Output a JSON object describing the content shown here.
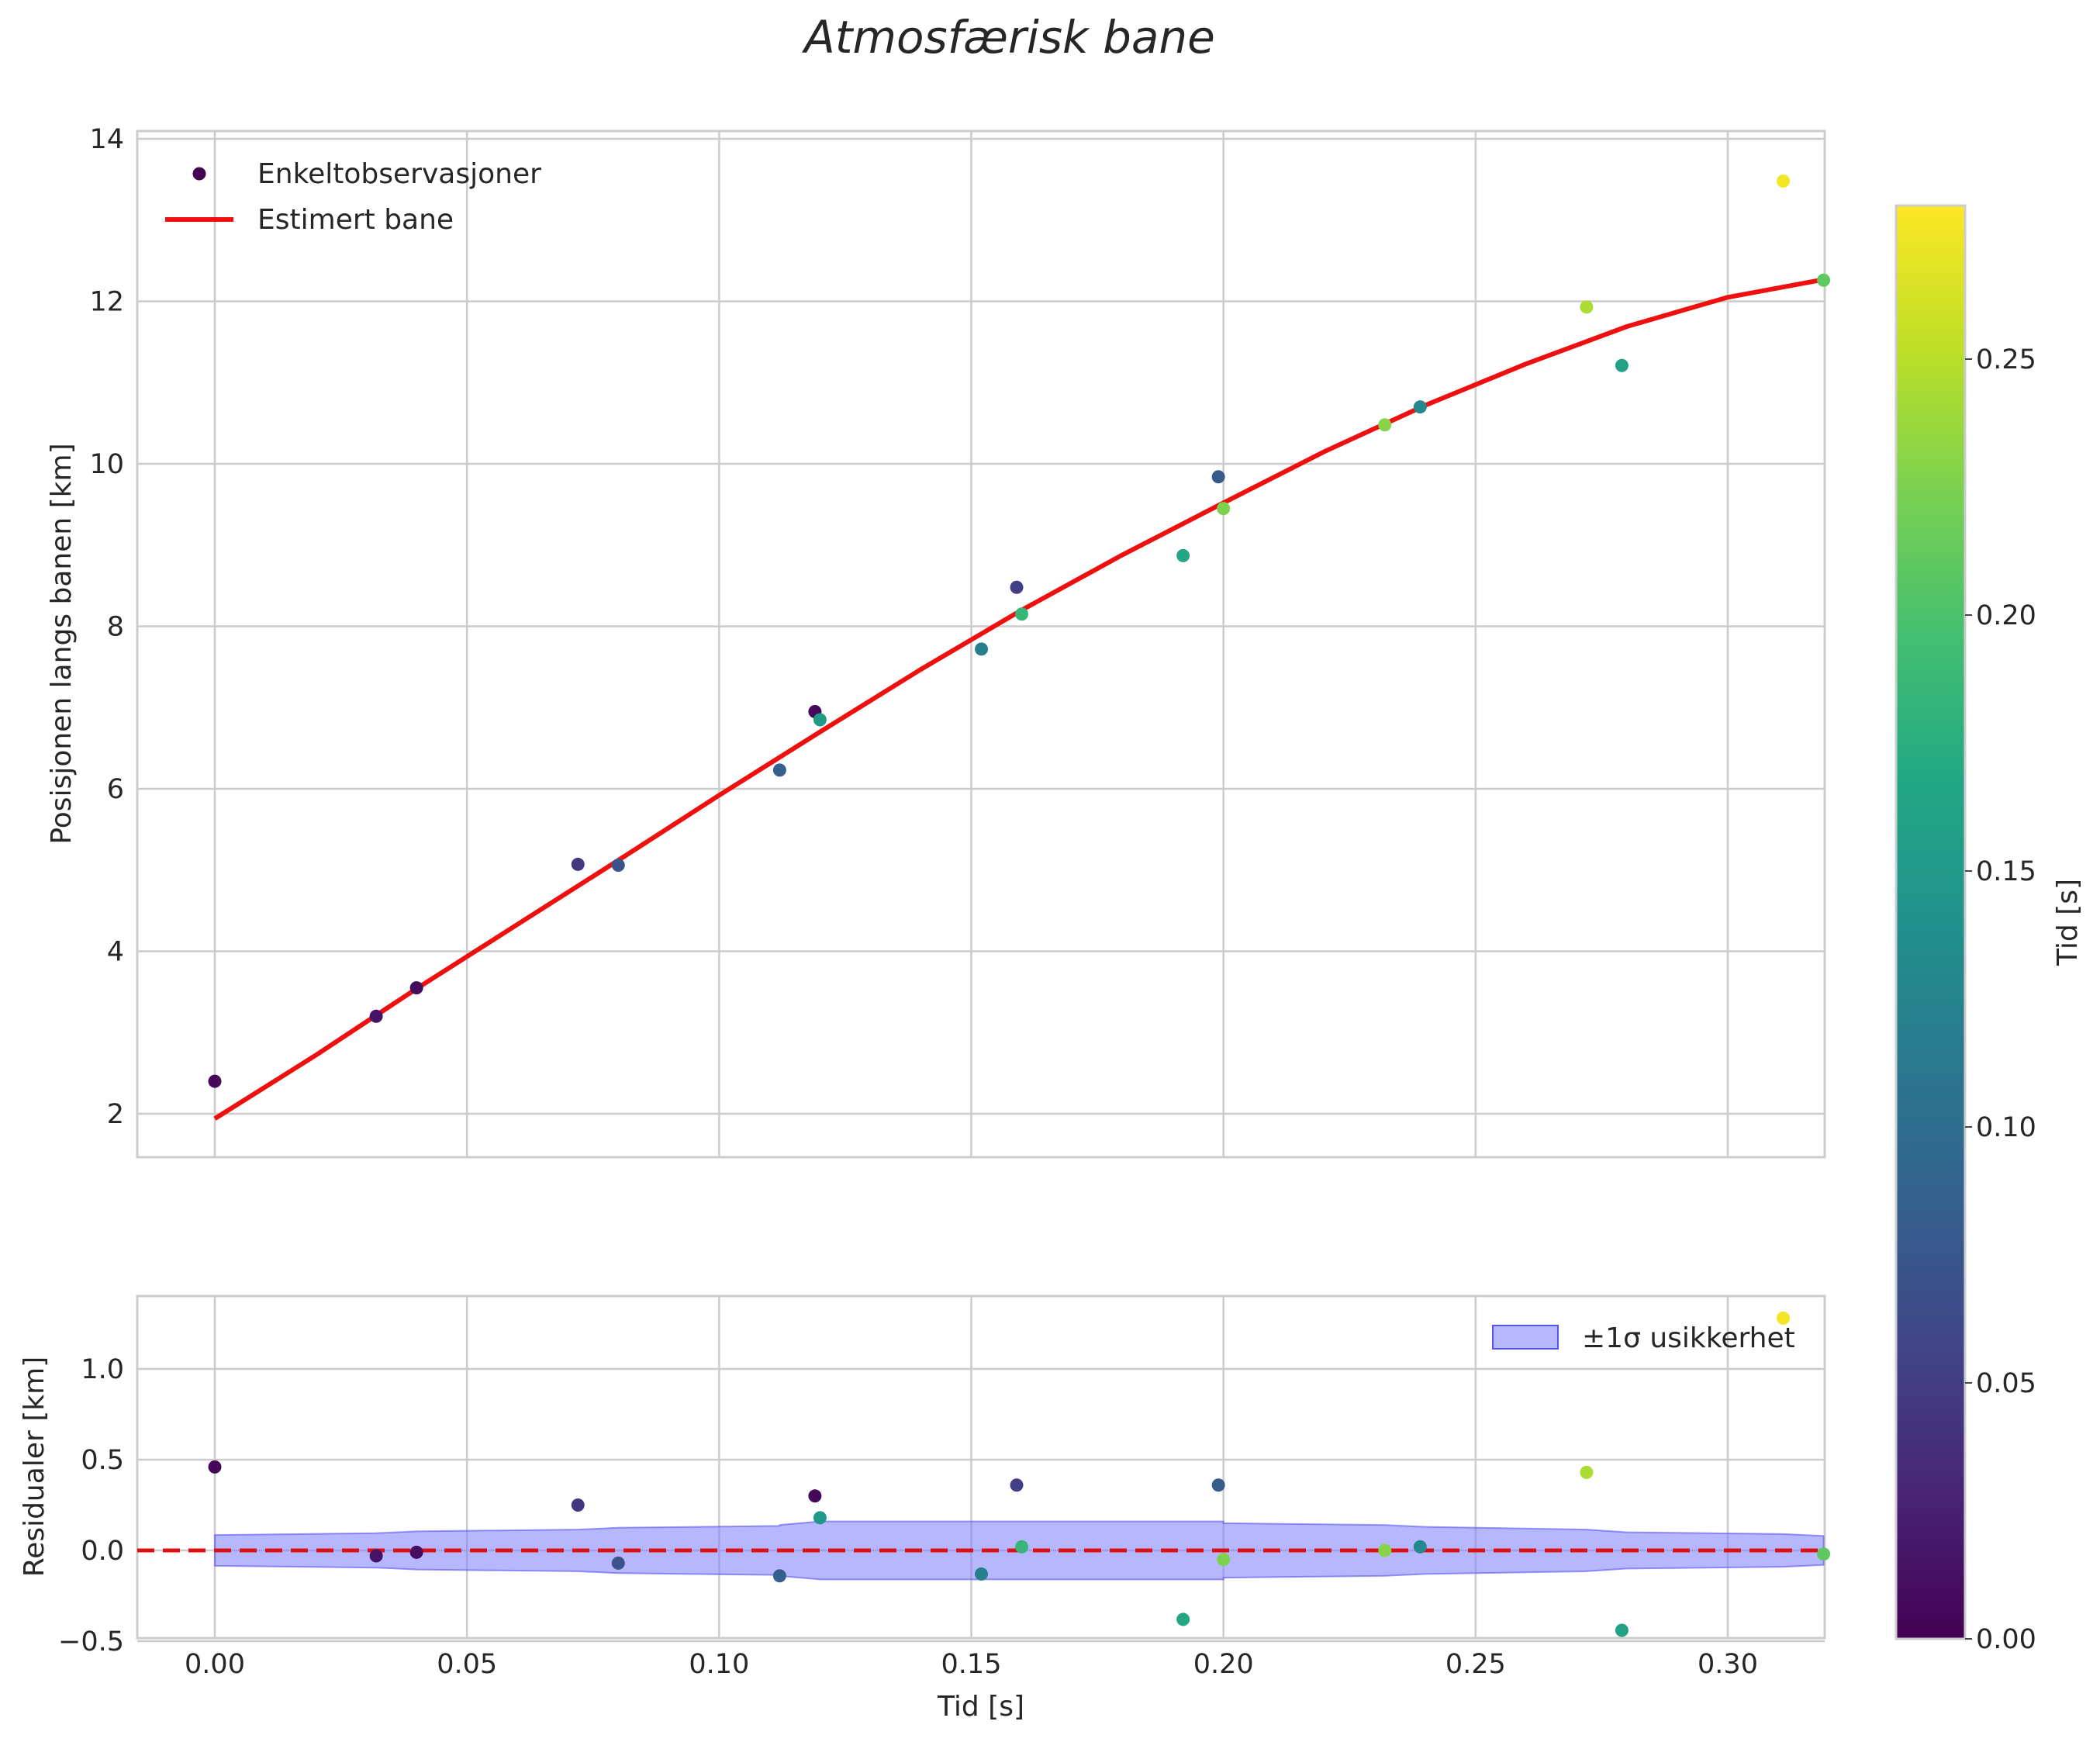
{
  "chart_data": {
    "type": "scatter",
    "title": "Atmosfærisk bane",
    "xlabel": "Tid [s]",
    "colorbar": {
      "label": "Tid [s]",
      "range": [
        0,
        0.28
      ],
      "ticks": [
        "0.00",
        "0.05",
        "0.10",
        "0.15",
        "0.20",
        "0.25"
      ],
      "colormap": "viridis"
    },
    "top_panel": {
      "ylabel": "Posisjonen langs banen [km]",
      "xlim": [
        -0.016,
        0.335
      ],
      "ylim": [
        1.4,
        14.1
      ],
      "xticks": [
        "0.00",
        "0.05",
        "0.10",
        "0.15",
        "0.20",
        "0.25",
        "0.30"
      ],
      "yticks": [
        "2",
        "4",
        "6",
        "8",
        "10",
        "12",
        "14"
      ],
      "legend": {
        "position": "upper-left",
        "scatter_label": "Enkeltobservasjoner",
        "line_label": "Estimert bane"
      },
      "observations": {
        "name": "Enkeltobservasjoner",
        "x": [
          0.0,
          0.032,
          0.04,
          0.072,
          0.08,
          0.112,
          0.119,
          0.12,
          0.152,
          0.159,
          0.16,
          0.192,
          0.199,
          0.2,
          0.232,
          0.239,
          0.272,
          0.279,
          0.311,
          0.319
        ],
        "y": [
          2.4,
          3.2,
          3.55,
          5.07,
          5.06,
          6.23,
          6.95,
          6.85,
          7.72,
          8.48,
          8.15,
          8.87,
          9.84,
          9.45,
          10.48,
          10.7,
          11.93,
          11.21,
          13.48,
          12.26
        ],
        "color_value": [
          0.005,
          0.014,
          0.01,
          0.045,
          0.07,
          0.085,
          0.005,
          0.15,
          0.12,
          0.05,
          0.185,
          0.165,
          0.08,
          0.225,
          0.23,
          0.13,
          0.245,
          0.16,
          0.275,
          0.21
        ]
      },
      "fit_line": {
        "name": "Estimert bane",
        "color": "#ee0f0f",
        "x": [
          0.0,
          0.02,
          0.04,
          0.06,
          0.08,
          0.1,
          0.12,
          0.14,
          0.16,
          0.18,
          0.2,
          0.22,
          0.24,
          0.26,
          0.28,
          0.3,
          0.32
        ],
        "y": [
          1.94,
          2.72,
          3.54,
          4.33,
          5.12,
          5.92,
          6.7,
          7.47,
          8.2,
          8.88,
          9.52,
          10.15,
          10.72,
          11.23,
          11.69,
          12.05,
          12.28
        ]
      }
    },
    "bottom_panel": {
      "ylabel": "Residualer [km]",
      "xlim": [
        -0.016,
        0.335
      ],
      "ylim": [
        -0.52,
        1.37
      ],
      "xticks": [
        "0.00",
        "0.05",
        "0.10",
        "0.15",
        "0.20",
        "0.25",
        "0.30"
      ],
      "yticks": [
        "−0.5",
        "0.0",
        "0.5",
        "1.0"
      ],
      "legend": {
        "position": "upper-right",
        "band_label": "±1σ usikkerhet"
      },
      "residuals": {
        "x": [
          0.0,
          0.032,
          0.04,
          0.072,
          0.08,
          0.112,
          0.119,
          0.12,
          0.152,
          0.159,
          0.16,
          0.192,
          0.199,
          0.2,
          0.232,
          0.239,
          0.272,
          0.279,
          0.311,
          0.319
        ],
        "y": [
          0.46,
          -0.03,
          -0.01,
          0.25,
          -0.07,
          -0.14,
          0.3,
          0.18,
          -0.13,
          0.36,
          0.02,
          -0.38,
          0.36,
          -0.05,
          0.0,
          0.02,
          0.43,
          -0.44,
          1.28,
          -0.02
        ]
      },
      "uncertainty_band": {
        "name": "±1σ usikkerhet",
        "color": "#7b7bff",
        "x": [
          0.0,
          0.032,
          0.04,
          0.072,
          0.08,
          0.112,
          0.112,
          0.12,
          0.152,
          0.16,
          0.192,
          0.2,
          0.2,
          0.232,
          0.24,
          0.272,
          0.28,
          0.311,
          0.319
        ],
        "sigma": [
          0.085,
          0.095,
          0.105,
          0.115,
          0.125,
          0.135,
          0.14,
          0.16,
          0.16,
          0.16,
          0.16,
          0.16,
          0.15,
          0.14,
          0.13,
          0.115,
          0.1,
          0.09,
          0.08
        ]
      },
      "zero_line": {
        "y": 0,
        "color": "#dd1111"
      }
    }
  }
}
